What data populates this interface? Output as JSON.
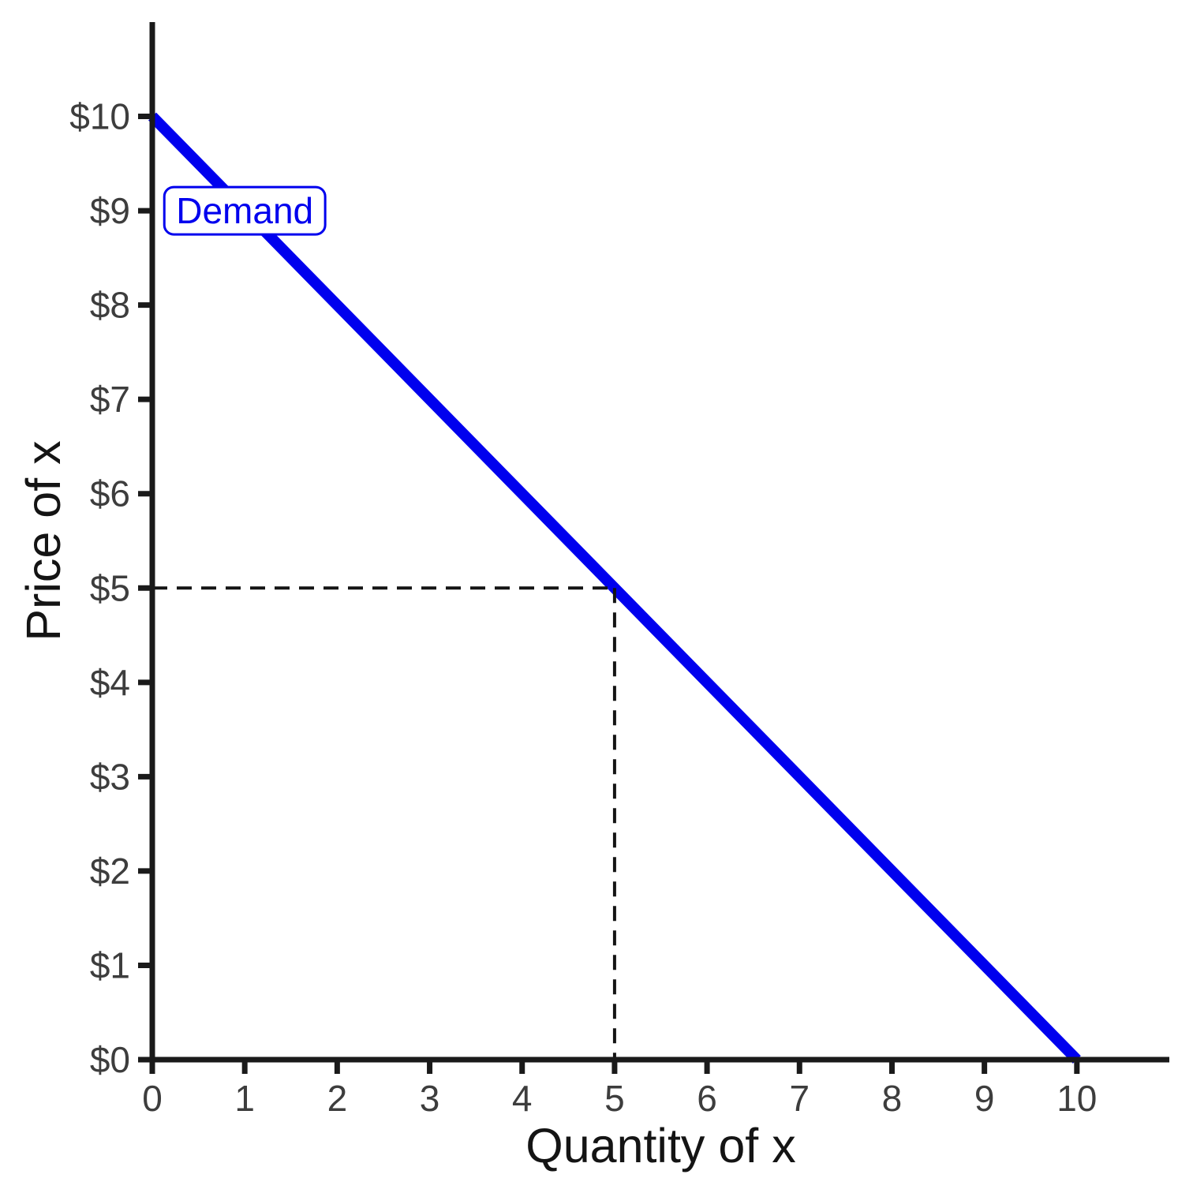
{
  "page": {
    "background": "#ffffff"
  },
  "style": {
    "axis_color": "#1a1a1a",
    "tick_label_color": "#3d3d3d",
    "axis_label_color": "#141414",
    "dash_color": "#141414",
    "line_color": "#0000ee",
    "annotation_bg": "#ffffff"
  },
  "chart_data": {
    "type": "line",
    "title": "",
    "xlabel": "Quantity of x",
    "ylabel": "Price of x",
    "xlim": [
      0,
      11
    ],
    "ylim": [
      0,
      11
    ],
    "grid": false,
    "legend_position": "annotation-box-top-left",
    "x_ticks": [
      {
        "value": 0,
        "label": "0"
      },
      {
        "value": 1,
        "label": "1"
      },
      {
        "value": 2,
        "label": "2"
      },
      {
        "value": 3,
        "label": "3"
      },
      {
        "value": 4,
        "label": "4"
      },
      {
        "value": 5,
        "label": "5"
      },
      {
        "value": 6,
        "label": "6"
      },
      {
        "value": 7,
        "label": "7"
      },
      {
        "value": 8,
        "label": "8"
      },
      {
        "value": 9,
        "label": "9"
      },
      {
        "value": 10,
        "label": "10"
      }
    ],
    "y_ticks": [
      {
        "value": 0,
        "label": "$0"
      },
      {
        "value": 1,
        "label": "$1"
      },
      {
        "value": 2,
        "label": "$2"
      },
      {
        "value": 3,
        "label": "$3"
      },
      {
        "value": 4,
        "label": "$4"
      },
      {
        "value": 5,
        "label": "$5"
      },
      {
        "value": 6,
        "label": "$6"
      },
      {
        "value": 7,
        "label": "$7"
      },
      {
        "value": 8,
        "label": "$8"
      },
      {
        "value": 9,
        "label": "$9"
      },
      {
        "value": 10,
        "label": "$10"
      }
    ],
    "series": [
      {
        "name": "Demand",
        "type": "line",
        "color": "#0000ee",
        "stroke_width": 14,
        "points": [
          {
            "x": 0,
            "y": 10
          },
          {
            "x": 10,
            "y": 0
          }
        ]
      }
    ],
    "annotations": [
      {
        "text": "Demand",
        "x": 1,
        "y": 9,
        "color": "#0000ee",
        "background": "#ffffff",
        "boxed": true
      }
    ],
    "guides": [
      {
        "type": "dashed-crosshair",
        "x": 5,
        "y": 5,
        "color": "#141414"
      }
    ],
    "highlighted_point": {
      "quantity_label": "5",
      "price_label": "$5"
    }
  }
}
